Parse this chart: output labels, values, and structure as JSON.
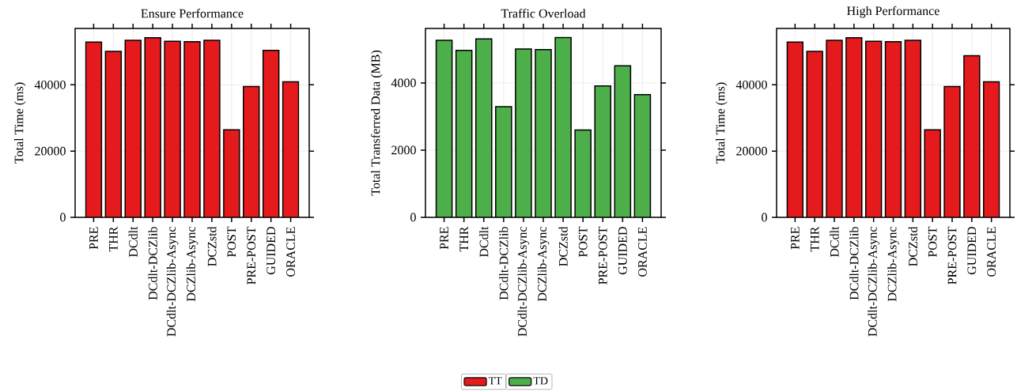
{
  "chart_data": [
    {
      "type": "bar",
      "title": "Ensure Performance",
      "ylabel": "Total Time (ms)",
      "categories": [
        "PRE",
        "THR",
        "DCdlt",
        "DCdlt-DCZlib",
        "DCdlt-DCZlib-Async",
        "DCZlib-Async",
        "DCZstd",
        "POST",
        "PRE-POST",
        "GUIDED",
        "ORACLE"
      ],
      "series": [
        {
          "name": "TT",
          "color": "#e41a1c",
          "values": [
            52900,
            50100,
            53400,
            54200,
            53100,
            53000,
            53400,
            26400,
            39500,
            50400,
            40900
          ]
        }
      ],
      "ylim": [
        0,
        57000
      ],
      "yticks": [
        0,
        20000,
        40000
      ],
      "grid": true,
      "legend": "bottom"
    },
    {
      "type": "bar",
      "title": "Traffic Overload",
      "ylabel": "Total Transferred Data (MB)",
      "categories": [
        "PRE",
        "THR",
        "DCdlt",
        "DCdlt-DCZlib",
        "DCdlt-DCZlib-Async",
        "DCZlib-Async",
        "DCZstd",
        "POST",
        "PRE-POST",
        "GUIDED",
        "ORACLE"
      ],
      "series": [
        {
          "name": "TD",
          "color": "#4daf4a",
          "values": [
            5270,
            4970,
            5310,
            3290,
            5010,
            4990,
            5350,
            2600,
            3910,
            4510,
            3650
          ]
        }
      ],
      "ylim": [
        0,
        5620
      ],
      "yticks": [
        0,
        2000,
        4000
      ],
      "grid": true,
      "legend": "bottom"
    },
    {
      "type": "bar",
      "title": "High Performance",
      "ylabel": "Total Time (ms)",
      "categories": [
        "PRE",
        "THR",
        "DCdlt",
        "DCdlt-DCZlib",
        "DCdlt-DCZlib-Async",
        "DCZlib-Async",
        "DCZstd",
        "POST",
        "PRE-POST",
        "GUIDED",
        "ORACLE"
      ],
      "series": [
        {
          "color": "#e41a1c",
          "values": [
            52900,
            50100,
            53400,
            54200,
            53100,
            53000,
            53400,
            26400,
            39500,
            48800,
            40900
          ]
        }
      ],
      "ylim": [
        0,
        57000
      ],
      "yticks": [
        0,
        20000,
        40000
      ],
      "grid": true
    }
  ]
}
